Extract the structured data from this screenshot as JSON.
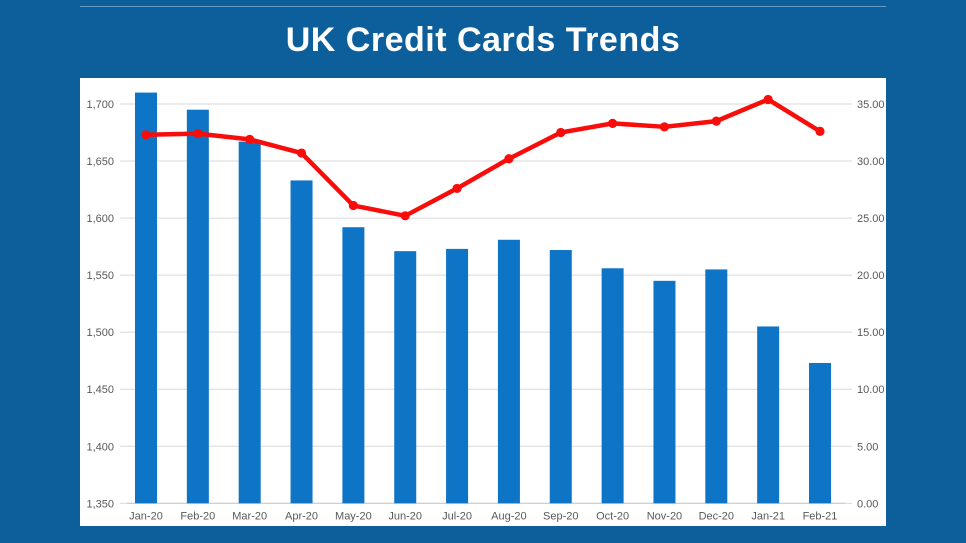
{
  "slide": {
    "title": "UK Credit Cards Trends"
  },
  "colors": {
    "slide_bg": "#0d5f9c",
    "panel_bg": "#ffffff",
    "bar": "#0e74c6",
    "line": "#f90d0b",
    "grid": "#d9d9d9",
    "axis_line": "#bfbfbf",
    "label": "#595959",
    "title": "#ffffff"
  },
  "chart_data": {
    "type": "combo",
    "title": "UK Credit Cards Trends",
    "categories": [
      "Jan-20",
      "Feb-20",
      "Mar-20",
      "Apr-20",
      "May-20",
      "Jun-20",
      "Jul-20",
      "Aug-20",
      "Sep-20",
      "Oct-20",
      "Nov-20",
      "Dec-20",
      "Jan-21",
      "Feb-21"
    ],
    "series": [
      {
        "type": "bar",
        "axis": "left",
        "values": [
          1710,
          1695,
          1667,
          1633,
          1592,
          1571,
          1573,
          1581,
          1572,
          1556,
          1545,
          1555,
          1505,
          1473
        ]
      },
      {
        "type": "line",
        "axis": "right",
        "values": [
          32.3,
          32.4,
          31.9,
          30.7,
          26.1,
          25.2,
          27.6,
          30.2,
          32.5,
          33.3,
          33.0,
          33.5,
          35.4,
          32.6
        ]
      }
    ],
    "left_axis": {
      "min": 1350,
      "max": 1700,
      "step": 50,
      "tick_labels": [
        "1,350",
        "1,400",
        "1,450",
        "1,500",
        "1,550",
        "1,600",
        "1,650",
        "1,700"
      ]
    },
    "right_axis": {
      "min": 0,
      "max": 35,
      "step": 5,
      "tick_labels": [
        "0.00",
        "5.00",
        "10.00",
        "15.00",
        "20.00",
        "25.00",
        "30.00",
        "35.00"
      ]
    },
    "grid": true,
    "legend": "none",
    "xlabel": "",
    "ylabel": ""
  }
}
